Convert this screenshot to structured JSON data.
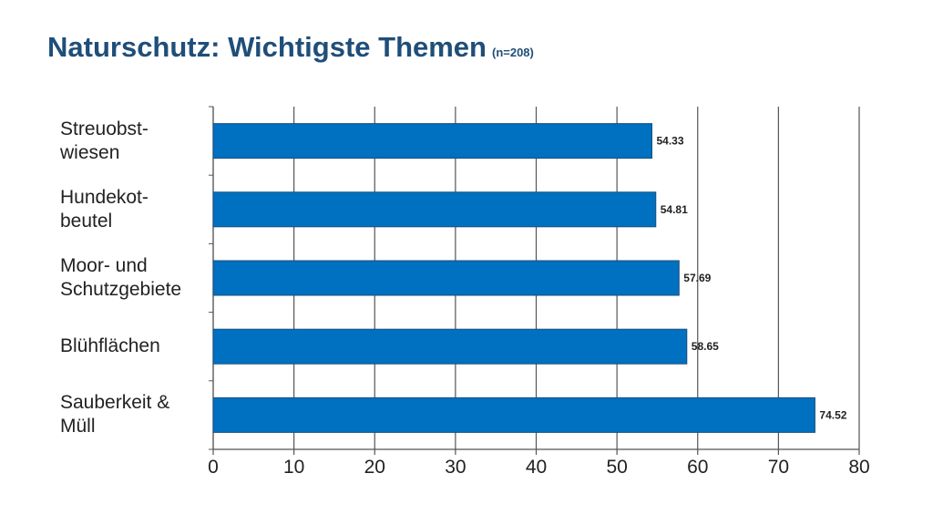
{
  "chart_data": {
    "type": "barh",
    "title": "Naturschutz: Wichtigste Themen",
    "subtitle": "(n=208)",
    "categories": [
      "Streuobst-\nwiesen",
      "Hundekot-\nbeutel",
      "Moor- und\nSchutzgebiete",
      "Blühflächen",
      "Sauberkeit &\nMüll"
    ],
    "values": [
      54.33,
      54.81,
      57.69,
      58.65,
      74.52
    ],
    "color": "#0070c0",
    "xlim": [
      0,
      80
    ],
    "xticks": [
      0,
      10,
      20,
      30,
      40,
      50,
      60,
      70,
      80
    ],
    "grid": true
  }
}
